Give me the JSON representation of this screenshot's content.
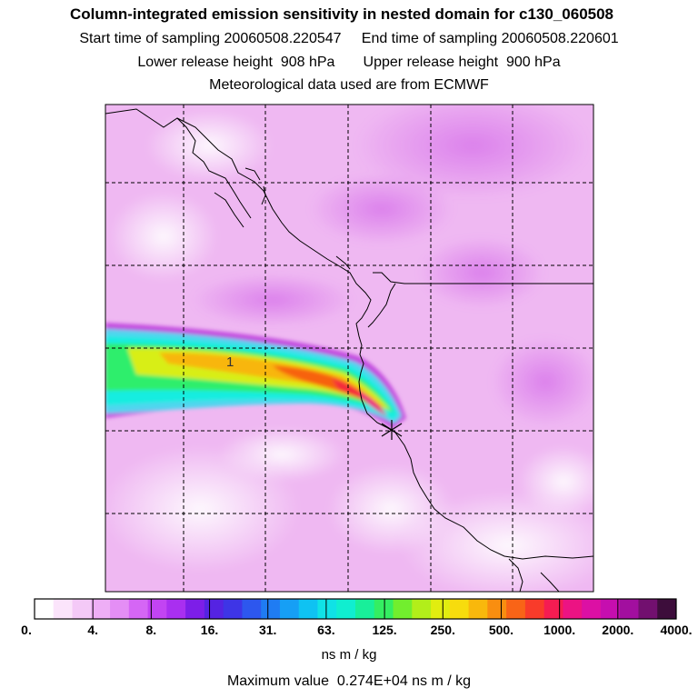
{
  "header": {
    "title": "Column-integrated emission sensitivity in nested domain for c130_060508",
    "line1": "Start time of sampling 20060508.220547     End time of sampling 20060508.220601",
    "line2": "Lower release height  908 hPa       Upper release height  900 hPa",
    "line3": "Meteorological data used are from ECMWF"
  },
  "map": {
    "contour_label": "1"
  },
  "colorbar": {
    "colors": [
      "#ffffff",
      "#fbe4fb",
      "#f4c9f7",
      "#eeaef6",
      "#e48ef5",
      "#d566f5",
      "#c244f3",
      "#a92ff0",
      "#7d1ee8",
      "#5523e2",
      "#3e35e6",
      "#2d57ee",
      "#1f7cf3",
      "#169ff5",
      "#0fc2f2",
      "#10e2e6",
      "#10eed0",
      "#18ef9a",
      "#34ee62",
      "#72ee2e",
      "#b2ee1a",
      "#e1ed10",
      "#f7dc0d",
      "#f9b80c",
      "#f98e10",
      "#f96417",
      "#f93b2a",
      "#f51c52",
      "#ec1383",
      "#dc10a4",
      "#c60eaf",
      "#a20f9f",
      "#72106f",
      "#3d0d3b"
    ],
    "ticks": [
      "0.",
      "4.",
      "8.",
      "16.",
      "31.",
      "63.",
      "125.",
      "250.",
      "500.",
      "1000.",
      "2000.",
      "4000."
    ],
    "units": "ns m / kg"
  },
  "footer": {
    "max_value": "Maximum value  0.274E+04 ns m / kg"
  }
}
